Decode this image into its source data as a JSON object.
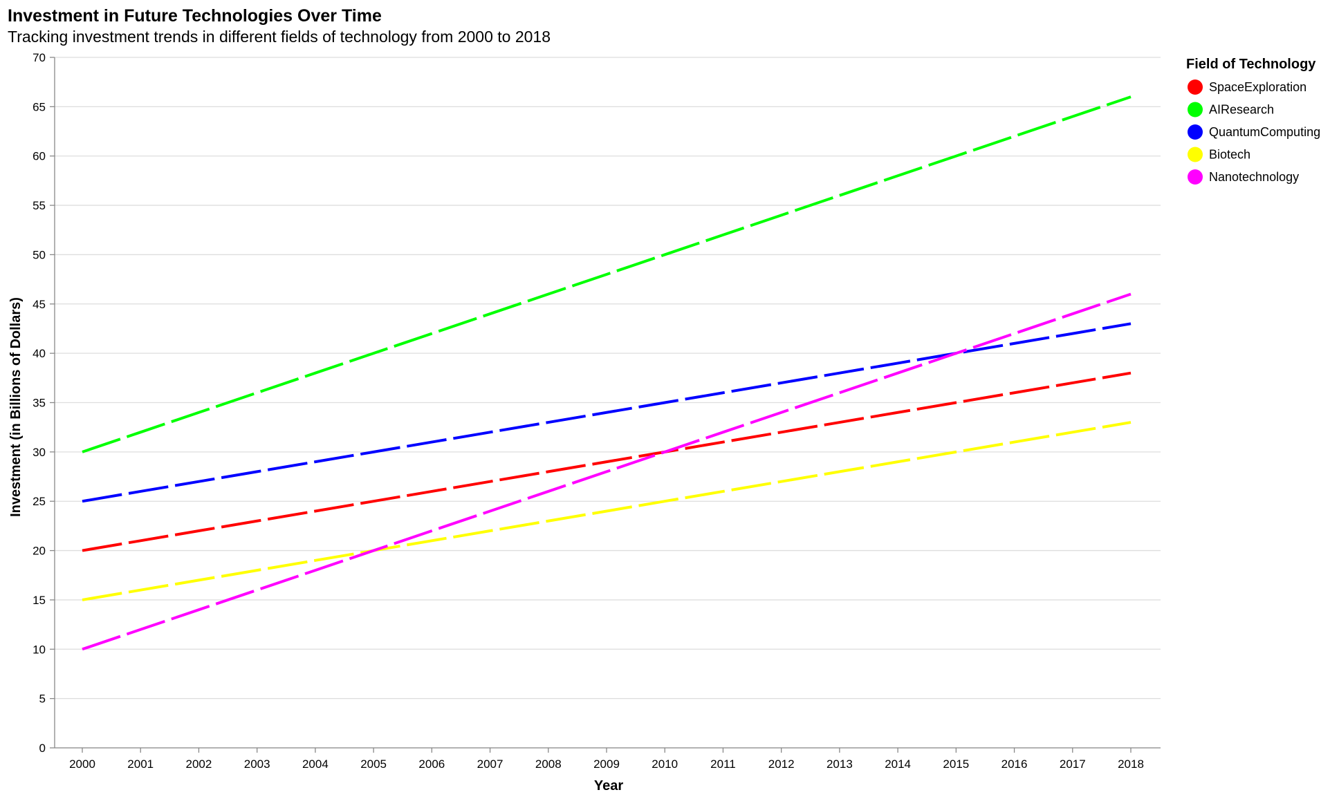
{
  "chart_data": {
    "type": "line",
    "title": "Investment in Future Technologies Over Time",
    "subtitle": "Tracking investment trends in different fields of technology from 2000 to 2018",
    "xlabel": "Year",
    "ylabel": "Investment (in Billions of Dollars)",
    "ylim": [
      0,
      70
    ],
    "yticks": [
      "0",
      "5",
      "10",
      "15",
      "20",
      "25",
      "30",
      "35",
      "40",
      "45",
      "50",
      "55",
      "60",
      "65",
      "70"
    ],
    "x": [
      "2000",
      "2001",
      "2002",
      "2003",
      "2004",
      "2005",
      "2006",
      "2007",
      "2008",
      "2009",
      "2010",
      "2011",
      "2012",
      "2013",
      "2014",
      "2015",
      "2016",
      "2017",
      "2018"
    ],
    "grid": true,
    "legend_position": "right",
    "legend_title": "Field of Technology",
    "series": [
      {
        "name": "SpaceExploration",
        "color": "#ff0000",
        "values": [
          20,
          21,
          22,
          23,
          24,
          25,
          26,
          27,
          28,
          29,
          30,
          31,
          32,
          33,
          34,
          35,
          36,
          37,
          38
        ]
      },
      {
        "name": "AIResearch",
        "color": "#00ff00",
        "values": [
          30,
          32,
          34,
          36,
          38,
          40,
          42,
          44,
          46,
          48,
          50,
          52,
          54,
          56,
          58,
          60,
          62,
          64,
          66
        ]
      },
      {
        "name": "QuantumComputing",
        "color": "#0000ff",
        "values": [
          25,
          26,
          27,
          28,
          29,
          30,
          31,
          32,
          33,
          34,
          35,
          36,
          37,
          38,
          39,
          40,
          41,
          42,
          43
        ]
      },
      {
        "name": "Biotech",
        "color": "#ffff00",
        "values": [
          15,
          16,
          17,
          18,
          19,
          20,
          21,
          22,
          23,
          24,
          25,
          26,
          27,
          28,
          29,
          30,
          31,
          32,
          33
        ]
      },
      {
        "name": "Nanotechnology",
        "color": "#ff00ff",
        "values": [
          10,
          12,
          14,
          16,
          18,
          20,
          22,
          24,
          26,
          28,
          30,
          32,
          34,
          36,
          38,
          40,
          42,
          44,
          46
        ]
      }
    ]
  }
}
